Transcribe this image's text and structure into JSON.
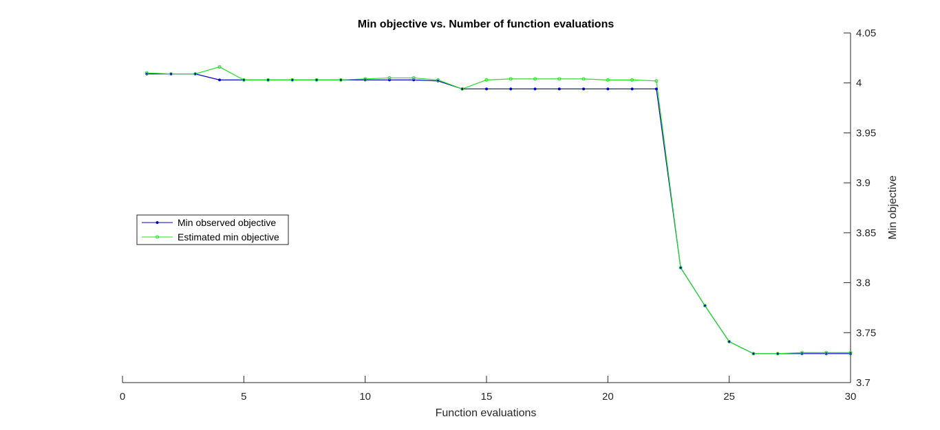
{
  "chart_data": {
    "type": "line",
    "title": "Min objective vs. Number of function evaluations",
    "xlabel": "Function evaluations",
    "ylabel": "Min objective",
    "xlim": [
      0,
      30
    ],
    "ylim": [
      3.7,
      4.05
    ],
    "xticks": [
      "0",
      "5",
      "10",
      "15",
      "20",
      "25",
      "30"
    ],
    "yticks": [
      "3.7",
      "3.75",
      "3.8",
      "3.85",
      "3.9",
      "3.95",
      "4",
      "4.05"
    ],
    "y_axis_side": "right",
    "grid": false,
    "legend_position": "middle-left",
    "x": [
      1,
      2,
      3,
      4,
      5,
      6,
      7,
      8,
      9,
      10,
      11,
      12,
      13,
      14,
      15,
      16,
      17,
      18,
      19,
      20,
      21,
      22,
      23,
      24,
      25,
      26,
      27,
      28,
      29,
      30
    ],
    "series": [
      {
        "name": "Min observed objective",
        "color": "#0000cc",
        "values": [
          4.009,
          4.009,
          4.009,
          4.003,
          4.003,
          4.003,
          4.003,
          4.003,
          4.003,
          4.003,
          4.003,
          4.003,
          4.002,
          3.994,
          3.994,
          3.994,
          3.994,
          3.994,
          3.994,
          3.994,
          3.994,
          3.994,
          3.815,
          3.777,
          3.741,
          3.729,
          3.729,
          3.729,
          3.729,
          3.729
        ]
      },
      {
        "name": "Estimated min objective",
        "color": "#22e022",
        "values": [
          4.01,
          4.009,
          4.009,
          4.016,
          4.003,
          4.003,
          4.003,
          4.003,
          4.003,
          4.004,
          4.005,
          4.005,
          4.003,
          3.994,
          4.003,
          4.004,
          4.004,
          4.004,
          4.004,
          4.003,
          4.003,
          4.002,
          3.815,
          3.777,
          3.741,
          3.729,
          3.729,
          3.73,
          3.73,
          3.73
        ]
      }
    ]
  }
}
